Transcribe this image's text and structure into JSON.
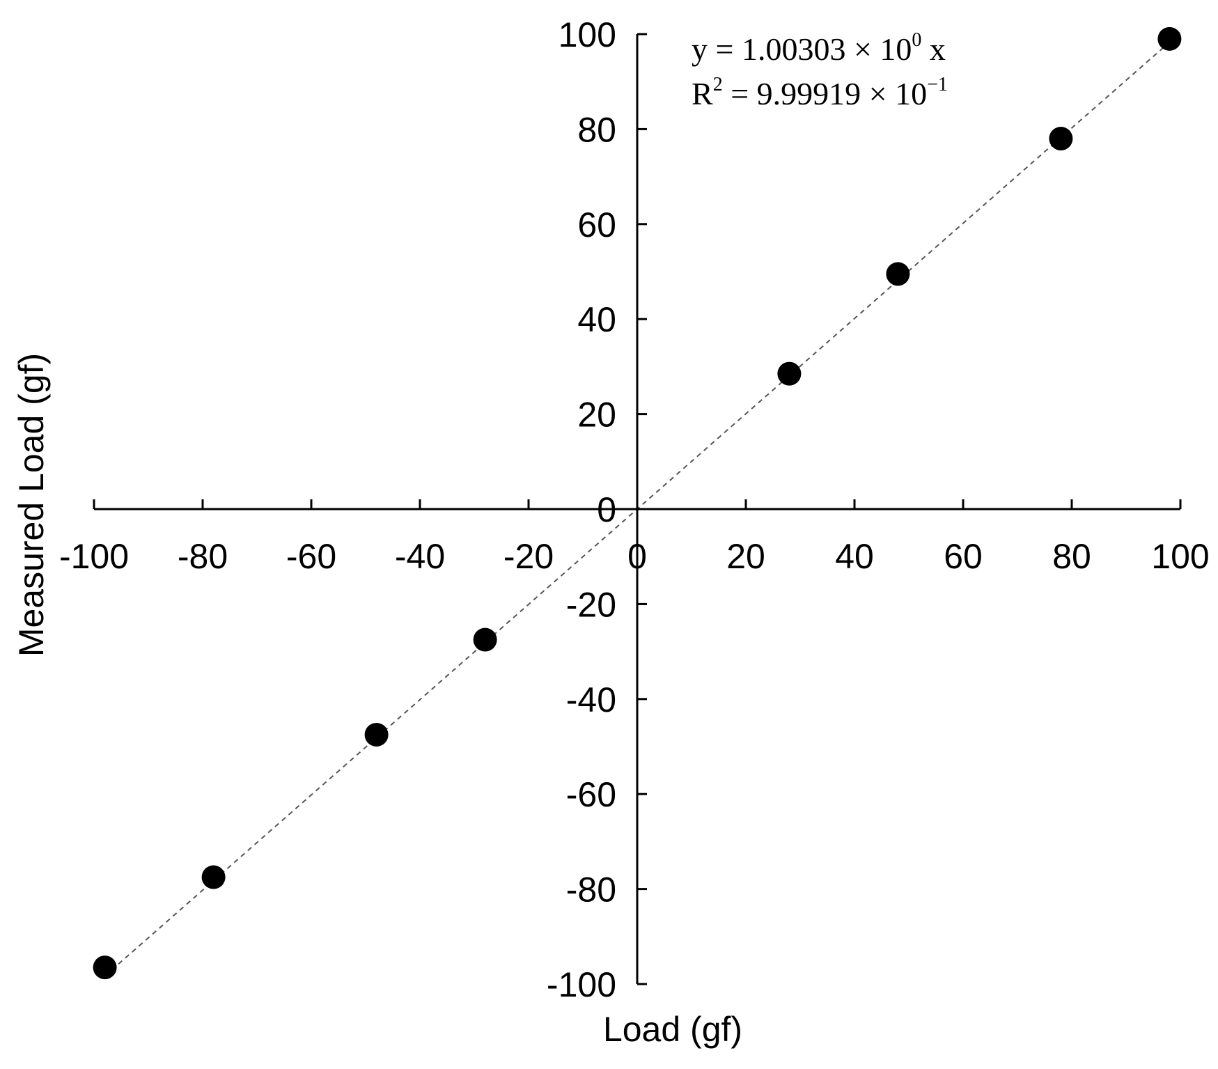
{
  "chart_data": {
    "type": "scatter",
    "xlabel": "Load (gf)",
    "ylabel": "Measured Load (gf)",
    "xlim": [
      -100,
      100
    ],
    "ylim": [
      -100,
      100
    ],
    "x_ticks": [
      -100,
      -80,
      -60,
      -40,
      -20,
      0,
      20,
      40,
      60,
      80,
      100
    ],
    "y_ticks": [
      100,
      80,
      60,
      40,
      20,
      0,
      -20,
      -40,
      -60,
      -80,
      -100
    ],
    "grid": false,
    "series": [
      {
        "x": [
          -98,
          -78,
          -48,
          -28,
          28,
          48,
          78,
          98
        ],
        "y": [
          -96.5,
          -77.5,
          -47.5,
          -27.5,
          28.5,
          49.5,
          78,
          99
        ],
        "marker": "circle",
        "color": "#000000"
      }
    ],
    "trendline": {
      "slope": 1.00303,
      "style": "dashed",
      "color": "#555555",
      "x_range": [
        -98,
        100
      ]
    },
    "annotation": {
      "equation": {
        "y_var": "y",
        "eq1": " = 1.00303 × 10",
        "exp1": "0",
        "x_var": "x"
      },
      "r_squared": {
        "r": "R",
        "r_exp": "2",
        "eq2": " = 9.99919 × 10",
        "exp2": "−1"
      }
    }
  }
}
